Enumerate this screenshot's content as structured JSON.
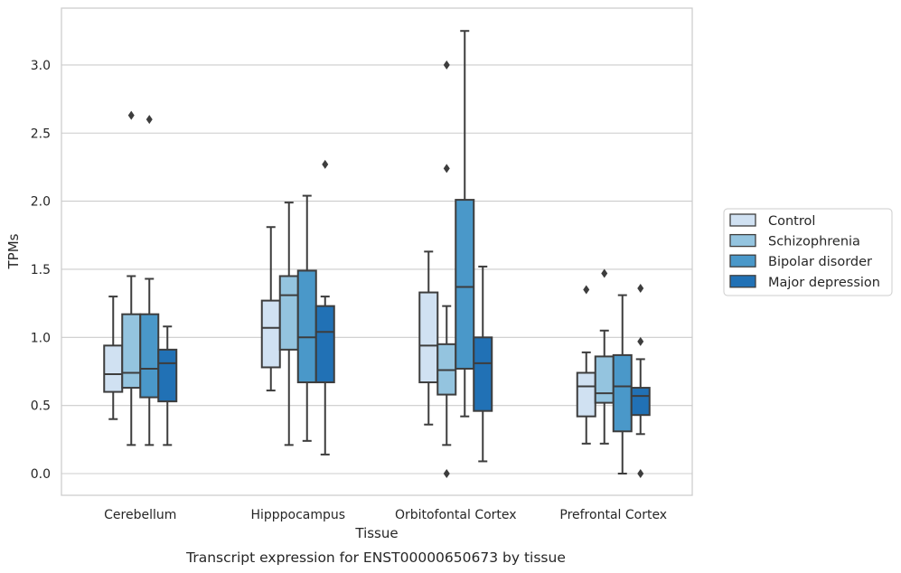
{
  "caption": "Transcript expression for ENST00000650673 by tissue",
  "chart_data": {
    "type": "box",
    "xlabel": "Tissue",
    "ylabel": "TPMs",
    "ylim": [
      -0.15,
      3.42
    ],
    "yticks": [
      0.0,
      0.5,
      1.0,
      1.5,
      2.0,
      2.5,
      3.0
    ],
    "ytick_labels": [
      "0.0",
      "0.5",
      "1.0",
      "1.5",
      "2.0",
      "2.5",
      "3.0"
    ],
    "grid": "horizontal",
    "legend_position": "right",
    "categories": [
      "Cerebellum",
      "Hipppocampus",
      "Orbitofontal Cortex",
      "Prefrontal Cortex"
    ],
    "series": [
      {
        "name": "Control",
        "color": "#d0e1f2",
        "boxes": [
          {
            "whislo": 0.4,
            "q1": 0.6,
            "med": 0.73,
            "q3": 0.94,
            "whishi": 1.3,
            "fliers": []
          },
          {
            "whislo": 0.61,
            "q1": 0.78,
            "med": 1.07,
            "q3": 1.27,
            "whishi": 1.81,
            "fliers": []
          },
          {
            "whislo": 0.36,
            "q1": 0.67,
            "med": 0.94,
            "q3": 1.33,
            "whishi": 1.63,
            "fliers": []
          },
          {
            "whislo": 0.22,
            "q1": 0.42,
            "med": 0.64,
            "q3": 0.74,
            "whishi": 0.89,
            "fliers": [
              1.35
            ]
          }
        ]
      },
      {
        "name": "Schizophrenia",
        "color": "#94c4df",
        "boxes": [
          {
            "whislo": 0.21,
            "q1": 0.63,
            "med": 0.74,
            "q3": 1.17,
            "whishi": 1.45,
            "fliers": [
              2.63
            ]
          },
          {
            "whislo": 0.21,
            "q1": 0.91,
            "med": 1.31,
            "q3": 1.45,
            "whishi": 1.99,
            "fliers": []
          },
          {
            "whislo": 0.21,
            "q1": 0.58,
            "med": 0.76,
            "q3": 0.95,
            "whishi": 1.23,
            "fliers": [
              3.0,
              2.24,
              0.0
            ]
          },
          {
            "whislo": 0.22,
            "q1": 0.52,
            "med": 0.59,
            "q3": 0.86,
            "whishi": 1.05,
            "fliers": [
              1.47
            ]
          }
        ]
      },
      {
        "name": "Bipolar disorder",
        "color": "#4a98c9",
        "boxes": [
          {
            "whislo": 0.21,
            "q1": 0.56,
            "med": 0.77,
            "q3": 1.17,
            "whishi": 1.43,
            "fliers": [
              2.6
            ]
          },
          {
            "whislo": 0.24,
            "q1": 0.67,
            "med": 1.0,
            "q3": 1.49,
            "whishi": 2.04,
            "fliers": []
          },
          {
            "whislo": 0.42,
            "q1": 0.77,
            "med": 1.37,
            "q3": 2.01,
            "whishi": 3.25,
            "fliers": []
          },
          {
            "whislo": 0.0,
            "q1": 0.31,
            "med": 0.64,
            "q3": 0.87,
            "whishi": 1.31,
            "fliers": []
          }
        ]
      },
      {
        "name": "Major depression",
        "color": "#2171b5",
        "boxes": [
          {
            "whislo": 0.21,
            "q1": 0.53,
            "med": 0.81,
            "q3": 0.91,
            "whishi": 1.08,
            "fliers": []
          },
          {
            "whislo": 0.14,
            "q1": 0.67,
            "med": 1.04,
            "q3": 1.23,
            "whishi": 1.3,
            "fliers": [
              2.27
            ]
          },
          {
            "whislo": 0.09,
            "q1": 0.46,
            "med": 0.81,
            "q3": 1.0,
            "whishi": 1.52,
            "fliers": []
          },
          {
            "whislo": 0.29,
            "q1": 0.43,
            "med": 0.57,
            "q3": 0.63,
            "whishi": 0.84,
            "fliers": [
              1.36,
              0.97,
              0.0
            ]
          }
        ]
      }
    ]
  }
}
